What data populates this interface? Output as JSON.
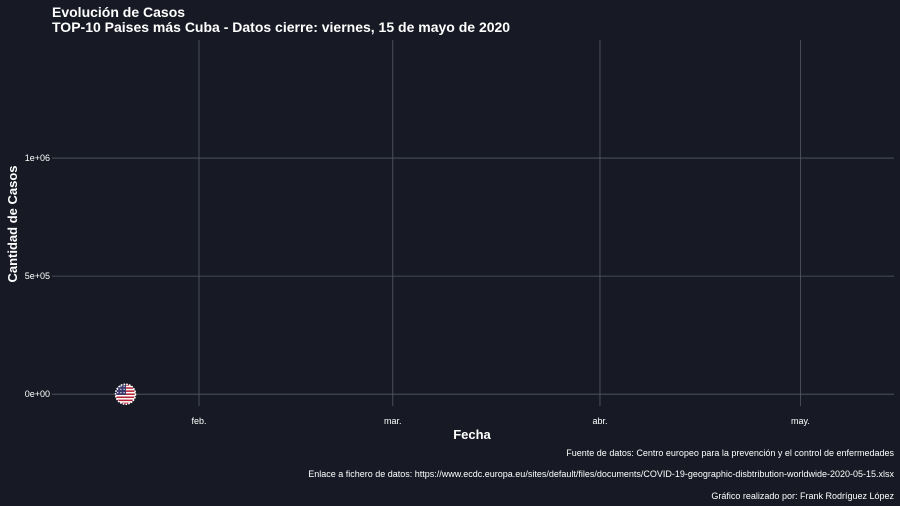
{
  "chart_data": {
    "type": "line",
    "title": "Evolución de Casos",
    "subtitle": "TOP-10 Paises más Cuba - Datos cierre: viernes, 15 de mayo de 2020",
    "xlabel": "Fecha",
    "ylabel": "Cantidad de Casos",
    "x_axis": {
      "type": "date",
      "range": [
        "2020-01-10",
        "2020-05-15"
      ],
      "ticks": [
        {
          "value": "2020-02-01",
          "label": "feb."
        },
        {
          "value": "2020-03-01",
          "label": "mar."
        },
        {
          "value": "2020-04-01",
          "label": "abr."
        },
        {
          "value": "2020-05-01",
          "label": "may."
        }
      ]
    },
    "y_axis": {
      "range": [
        -50000,
        1500000
      ],
      "ticks": [
        {
          "value": 0,
          "label": "0e+00"
        },
        {
          "value": 500000,
          "label": "5e+05"
        },
        {
          "value": 1000000,
          "label": "1e+06"
        }
      ]
    },
    "grid": true,
    "legend": "none",
    "series": [
      {
        "icon": "us-flag-icon",
        "color": "#b22234",
        "points": [
          {
            "x": "2020-01-21",
            "y": 0
          }
        ]
      }
    ],
    "captions": [
      "Fuente de datos: Centro europeo para la prevención y el control de enfermedades",
      "Enlace a fichero de datos: https://www.ecdc.europa.eu/sites/default/files/documents/COVID-19-geographic-disbtribution-worldwide-2020-05-15.xlsx",
      "Gráfico realizado por: Frank Rodríguez López"
    ],
    "colors": {
      "background": "#171a24",
      "grid": "#555a66",
      "text": "#ffffff",
      "flag_red": "#b22234",
      "flag_blue": "#3c3b6e"
    }
  }
}
